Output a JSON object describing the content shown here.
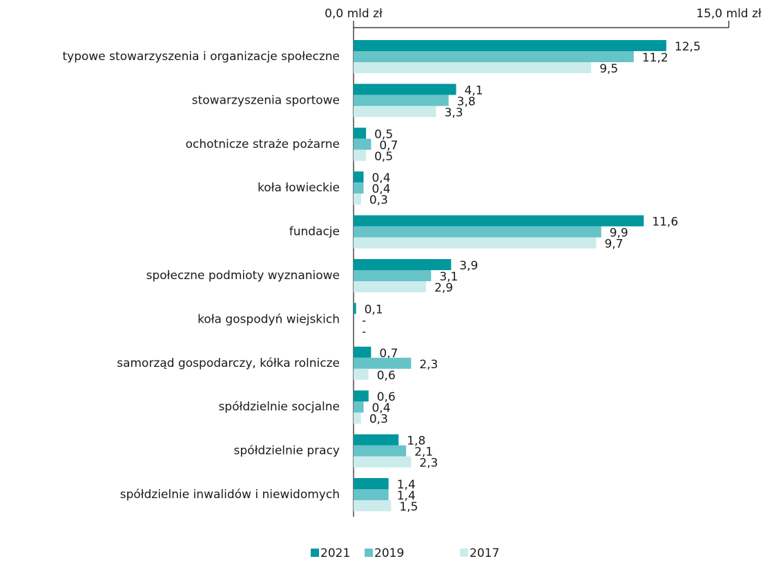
{
  "chart_data": {
    "type": "barh",
    "categories": [
      "typowe stowarzyszenia i organizacje społeczne",
      "stowarzyszenia sportowe",
      "ochotnicze straże pożarne",
      "koła łowieckie",
      "fundacje",
      "społeczne podmioty wyznaniowe",
      "koła gospodyń wiejskich",
      "samorząd gospodarczy, kółka rolnicze",
      "spółdzielnie socjalne",
      "spółdzielnie pracy",
      "spółdzielnie inwalidów i niewidomych"
    ],
    "series": [
      {
        "name": "2021",
        "color": "#00979d",
        "values": [
          12.5,
          4.1,
          0.5,
          0.4,
          11.6,
          3.9,
          0.1,
          0.7,
          0.6,
          1.8,
          1.4
        ],
        "value_labels": [
          "12,5",
          "4,1",
          "0,5",
          "0,4",
          "11,6",
          "3,9",
          "0,1",
          "0,7",
          "0,6",
          "1,8",
          "1,4"
        ]
      },
      {
        "name": "2019",
        "color": "#66c3c8",
        "values": [
          11.2,
          3.8,
          0.7,
          0.4,
          9.9,
          3.1,
          null,
          2.3,
          0.4,
          2.1,
          1.4
        ],
        "value_labels": [
          "11,2",
          "3,8",
          "0,7",
          "0,4",
          "9,9",
          "3,1",
          "-",
          "2,3",
          "0,4",
          "2,1",
          "1,4"
        ]
      },
      {
        "name": "2017",
        "color": "#ccecec",
        "values": [
          9.5,
          3.3,
          0.5,
          0.3,
          9.7,
          2.9,
          null,
          0.6,
          0.3,
          2.3,
          1.5
        ],
        "value_labels": [
          "9,5",
          "3,3",
          "0,5",
          "0,3",
          "9,7",
          "2,9",
          "-",
          "0,6",
          "0,3",
          "2,3",
          "1,5"
        ]
      }
    ],
    "xlim": [
      0,
      15
    ],
    "xticks": [
      {
        "value": 0,
        "label": "0,0 mld zł"
      },
      {
        "value": 15,
        "label": "15,0 mld zł"
      }
    ],
    "legend": "bottom"
  }
}
